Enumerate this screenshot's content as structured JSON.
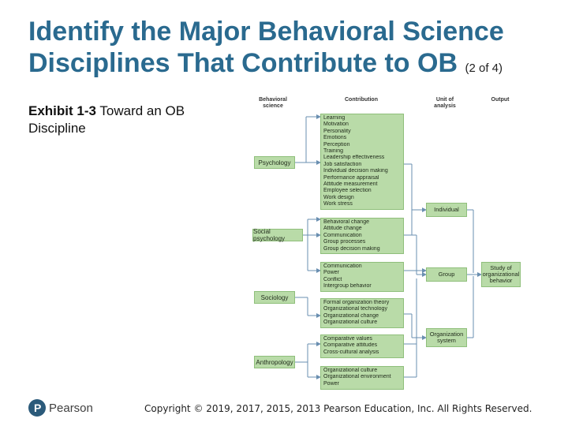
{
  "title": {
    "main": "Identify the Major Behavioral Science Disciplines That Contribute to OB",
    "sub": "(2 of 4)"
  },
  "caption": {
    "exhibit": "Exhibit 1-3",
    "text": "Toward an OB Discipline"
  },
  "diagram": {
    "headers": {
      "science": "Behavioral science",
      "contribution": "Contribution",
      "unit": "Unit of analysis",
      "output": "Output"
    },
    "disciplines": {
      "psychology": "Psychology",
      "social": "Social psychology",
      "sociology": "Sociology",
      "anthropology": "Anthropology"
    },
    "contributions": [
      [
        "Learning",
        "Motivation",
        "Personality",
        "Emotions",
        "Perception",
        "Training",
        "Leadership effectiveness",
        "Job satisfaction",
        "Individual decision making",
        "Performance appraisal",
        "Attitude measurement",
        "Employee selection",
        "Work design",
        "Work stress"
      ],
      [
        "Behavioral change",
        "Attitude change",
        "Communication",
        "Group processes",
        "Group decision making"
      ],
      [
        "Communication",
        "Power",
        "Conflict",
        "Intergroup behavior"
      ],
      [
        "Formal organization theory",
        "Organizational technology",
        "Organizational change",
        "Organizational culture"
      ],
      [
        "Comparative values",
        "Comparative attitudes",
        "Cross-cultural analysis"
      ],
      [
        "Organizational culture",
        "Organizational environment",
        "Power"
      ]
    ],
    "units": {
      "individual": "Individual",
      "group": "Group",
      "organization": "Organization system"
    },
    "output": "Study of organizational behavior"
  },
  "footer": {
    "logo": "Pearson",
    "copyright": "Copyright © 2019, 2017, 2015, 2013 Pearson Education, Inc. All Rights Reserved."
  }
}
